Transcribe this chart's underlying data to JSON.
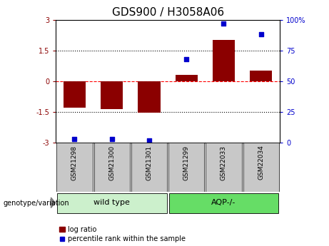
{
  "title": "GDS900 / H3058A06",
  "samples": [
    "GSM21298",
    "GSM21300",
    "GSM21301",
    "GSM21299",
    "GSM22033",
    "GSM22034"
  ],
  "log_ratios": [
    -1.3,
    -1.35,
    -1.55,
    0.3,
    2.0,
    0.5
  ],
  "percentile_ranks": [
    3,
    3,
    2,
    68,
    97,
    88
  ],
  "bar_color": "#8b0000",
  "dot_color": "#0000cc",
  "left_ylim": [
    -3,
    3
  ],
  "right_ylim": [
    0,
    100
  ],
  "left_yticks": [
    -3,
    -1.5,
    0,
    1.5,
    3
  ],
  "left_yticklabels": [
    "-3",
    "-1.5",
    "0",
    "1.5",
    "3"
  ],
  "right_yticks": [
    0,
    25,
    50,
    75,
    100
  ],
  "right_yticklabels": [
    "0",
    "25",
    "50",
    "75",
    "100%"
  ],
  "title_fontsize": 11,
  "legend_log_label": "log ratio",
  "legend_pct_label": "percentile rank within the sample",
  "group_label_prefix": "genotype/variation",
  "group_row_bg": "#c8c8c8",
  "group_spans": [
    {
      "label": "wild type",
      "start": 0,
      "end": 3,
      "color": "#ccf0cc"
    },
    {
      "label": "AQP-/-",
      "start": 3,
      "end": 6,
      "color": "#66dd66"
    }
  ],
  "wild_type_color": "#ccf0cc",
  "aqp_color": "#55cc55"
}
